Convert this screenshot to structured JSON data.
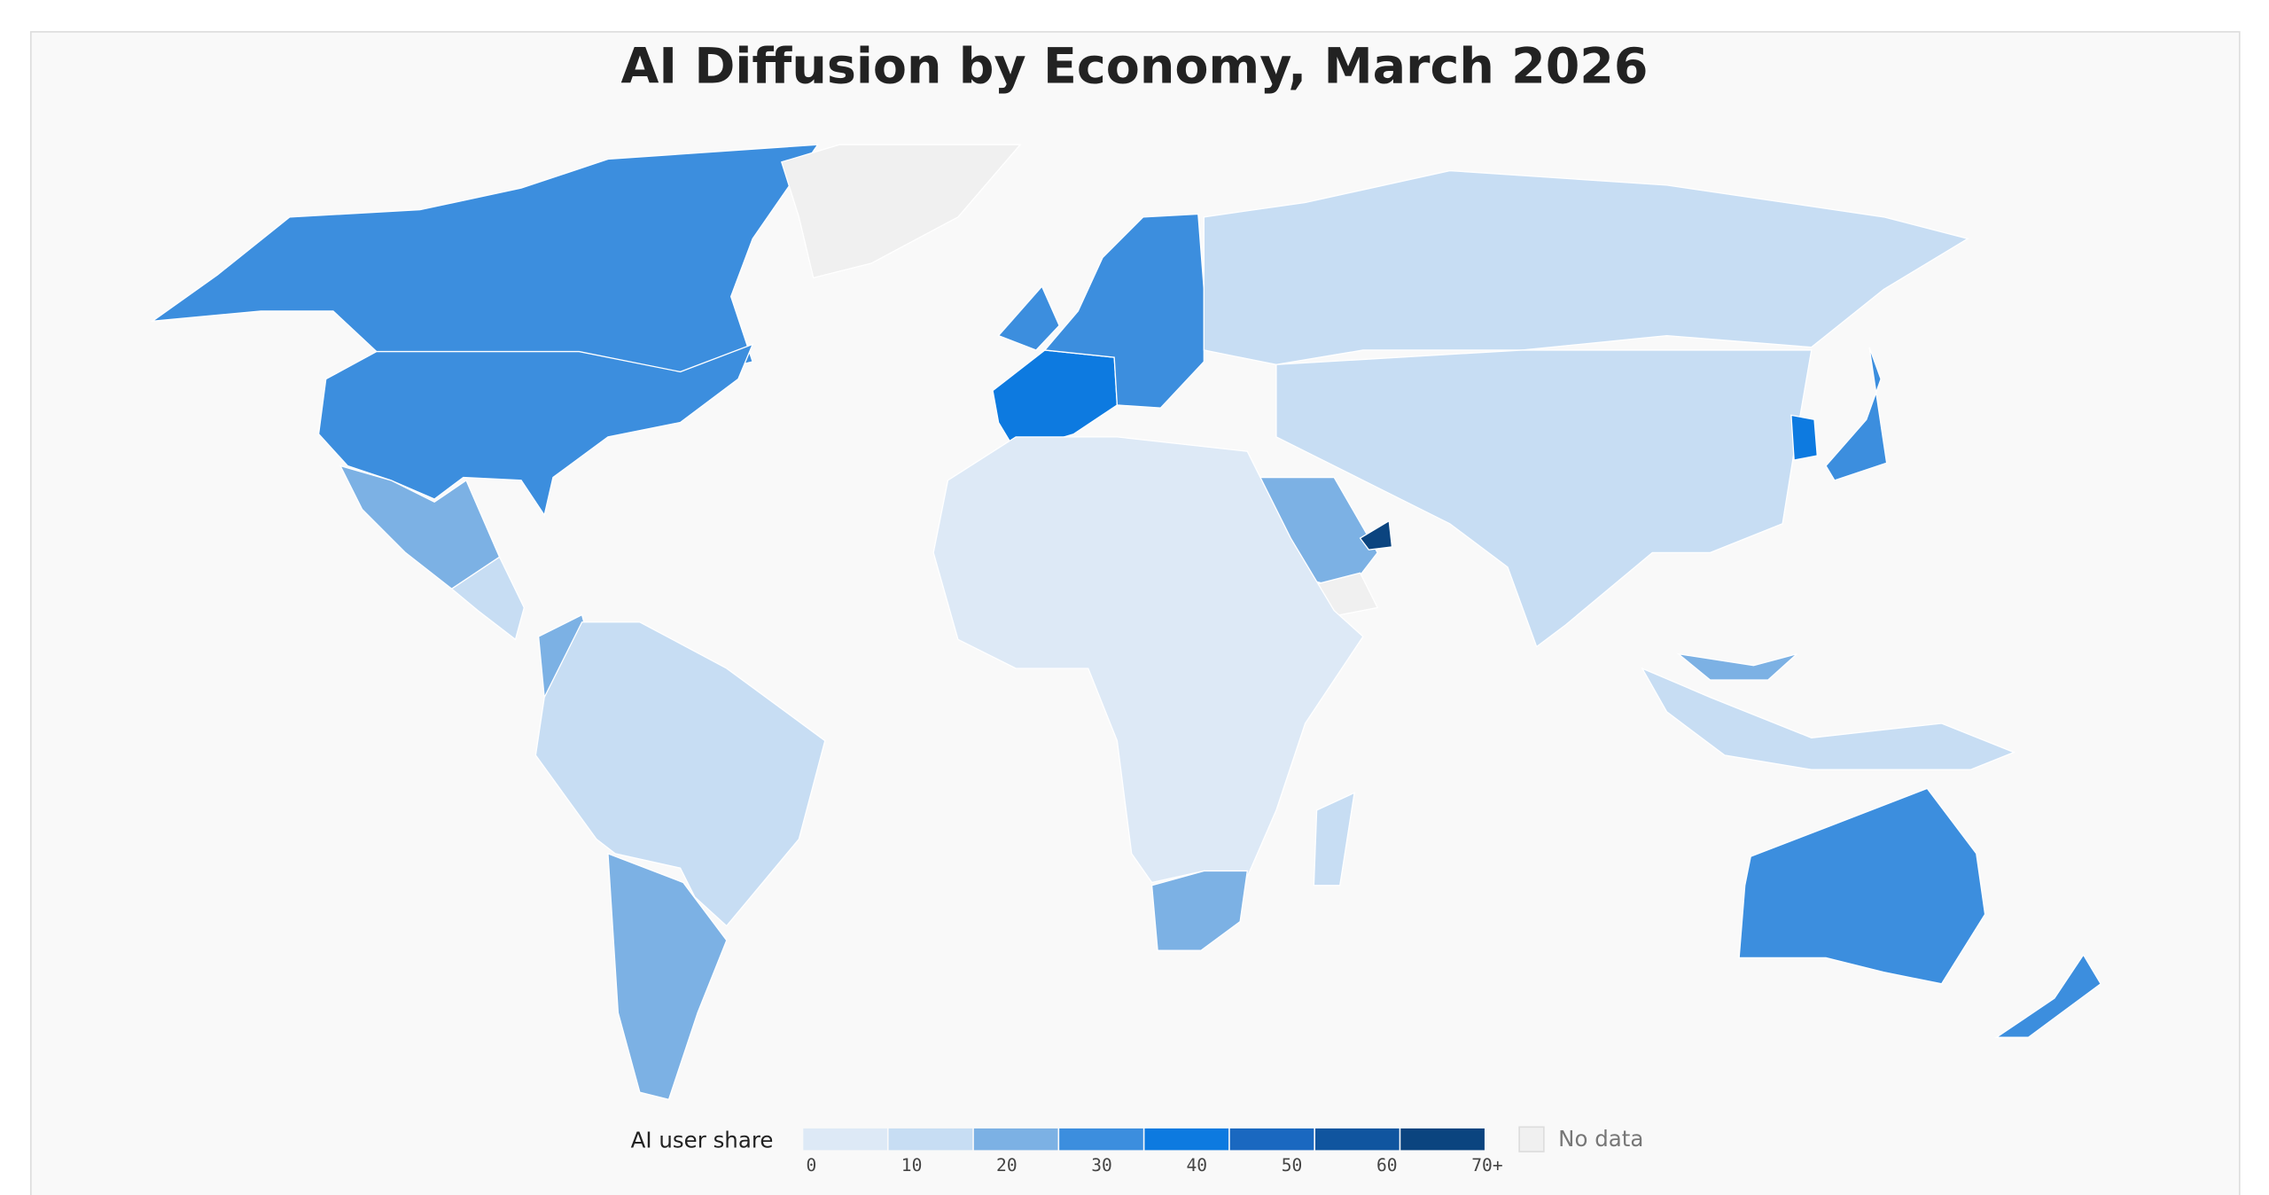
{
  "title": "AI Diffusion by Economy, March 2026",
  "legend": {
    "label": "AI user share",
    "bins": [
      0,
      10,
      20,
      30,
      40,
      50,
      60,
      {
        "value": 70,
        "label": "70+"
      }
    ],
    "colors": [
      "#dde9f6",
      "#c7ddf3",
      "#7cb1e4",
      "#3c8ede",
      "#0d7ae0",
      "#1a68c0",
      "#10559f",
      "#0b447f"
    ],
    "no_data": "No data",
    "no_data_color": "#f0f0f0"
  },
  "regions": {
    "values": [
      34,
      33,
      24,
      12,
      22,
      14,
      24,
      null,
      42,
      38,
      36,
      13,
      26,
      72,
      null,
      14,
      45,
      36,
      9,
      22,
      12,
      13,
      24,
      33,
      37
    ]
  }
}
